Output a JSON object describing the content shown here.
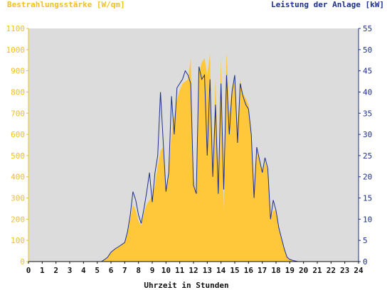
{
  "chart_data": {
    "type": "area",
    "title_left": "Bestrahlungsstärke [W/qm]",
    "title_right": "Leistung der Anlage [kW]",
    "xlabel": "Uhrzeit in Stunden",
    "x_ticks": [
      "0",
      "1",
      "2",
      "3",
      "4",
      "5",
      "6",
      "7",
      "8",
      "9",
      "10",
      "11",
      "12",
      "13",
      "14",
      "15",
      "16",
      "17",
      "18",
      "19",
      "20",
      "21",
      "22",
      "23",
      "24"
    ],
    "y_left_ticks": [
      "0",
      "100",
      "200",
      "300",
      "400",
      "500",
      "600",
      "700",
      "800",
      "900",
      "1000",
      "1100"
    ],
    "y_right_ticks": [
      "0",
      "5",
      "10",
      "15",
      "20",
      "25",
      "30",
      "35",
      "40",
      "45",
      "50",
      "55"
    ],
    "xlim": [
      0,
      24
    ],
    "ylim_left": [
      0,
      1100
    ],
    "ylim_right": [
      0,
      55
    ],
    "grid": false,
    "colors": {
      "irradiance_fill": "#ffc83a",
      "power_line": "#1c2f8c",
      "plot_background": "#dcdcdc",
      "left_axis": "#f0c020",
      "right_axis": "#1c2f8c"
    },
    "series": [
      {
        "name": "Bestrahlungsstärke [W/qm]",
        "axis": "left",
        "style": "area",
        "points": [
          [
            0,
            0
          ],
          [
            5.3,
            0
          ],
          [
            5.5,
            8
          ],
          [
            5.75,
            18
          ],
          [
            6.0,
            45
          ],
          [
            6.3,
            60
          ],
          [
            6.6,
            72
          ],
          [
            7.0,
            90
          ],
          [
            7.2,
            130
          ],
          [
            7.4,
            200
          ],
          [
            7.6,
            270
          ],
          [
            7.8,
            240
          ],
          [
            8.0,
            190
          ],
          [
            8.2,
            170
          ],
          [
            8.4,
            230
          ],
          [
            8.6,
            270
          ],
          [
            8.8,
            290
          ],
          [
            9.0,
            310
          ],
          [
            9.2,
            360
          ],
          [
            9.4,
            450
          ],
          [
            9.6,
            520
          ],
          [
            9.8,
            540
          ],
          [
            10.0,
            330
          ],
          [
            10.2,
            420
          ],
          [
            10.4,
            600
          ],
          [
            10.6,
            690
          ],
          [
            10.8,
            760
          ],
          [
            11.0,
            810
          ],
          [
            11.2,
            840
          ],
          [
            11.4,
            850
          ],
          [
            11.6,
            860
          ],
          [
            11.8,
            960
          ],
          [
            12.0,
            400
          ],
          [
            12.2,
            310
          ],
          [
            12.4,
            890
          ],
          [
            12.6,
            940
          ],
          [
            12.8,
            960
          ],
          [
            13.0,
            880
          ],
          [
            13.2,
            980
          ],
          [
            13.4,
            430
          ],
          [
            13.6,
            870
          ],
          [
            13.8,
            400
          ],
          [
            14.0,
            960
          ],
          [
            14.2,
            240
          ],
          [
            14.4,
            990
          ],
          [
            14.6,
            700
          ],
          [
            14.8,
            820
          ],
          [
            15.0,
            860
          ],
          [
            15.2,
            640
          ],
          [
            15.4,
            860
          ],
          [
            15.6,
            790
          ],
          [
            15.8,
            770
          ],
          [
            16.0,
            740
          ],
          [
            16.2,
            580
          ],
          [
            16.4,
            360
          ],
          [
            16.6,
            530
          ],
          [
            16.8,
            470
          ],
          [
            17.0,
            420
          ],
          [
            17.2,
            470
          ],
          [
            17.4,
            430
          ],
          [
            17.6,
            200
          ],
          [
            17.8,
            240
          ],
          [
            18.0,
            240
          ],
          [
            18.2,
            150
          ],
          [
            18.4,
            105
          ],
          [
            18.6,
            60
          ],
          [
            18.8,
            25
          ],
          [
            19.0,
            12
          ],
          [
            19.3,
            4
          ],
          [
            19.6,
            0
          ],
          [
            24,
            0
          ]
        ]
      },
      {
        "name": "Leistung der Anlage [kW]",
        "axis": "right",
        "style": "line",
        "points": [
          [
            0,
            0
          ],
          [
            5.3,
            0
          ],
          [
            5.5,
            0.4
          ],
          [
            5.75,
            1.0
          ],
          [
            6.0,
            2.2
          ],
          [
            6.3,
            3.0
          ],
          [
            6.6,
            3.6
          ],
          [
            7.0,
            4.5
          ],
          [
            7.2,
            7.0
          ],
          [
            7.4,
            11.0
          ],
          [
            7.6,
            16.5
          ],
          [
            7.8,
            14.5
          ],
          [
            8.0,
            11.0
          ],
          [
            8.2,
            9.0
          ],
          [
            8.4,
            12.5
          ],
          [
            8.6,
            16.5
          ],
          [
            8.8,
            21.0
          ],
          [
            9.0,
            14.0
          ],
          [
            9.2,
            21.0
          ],
          [
            9.4,
            25.0
          ],
          [
            9.6,
            40.0
          ],
          [
            9.8,
            28.0
          ],
          [
            10.0,
            16.5
          ],
          [
            10.2,
            21.0
          ],
          [
            10.4,
            39.0
          ],
          [
            10.6,
            30.0
          ],
          [
            10.8,
            41.0
          ],
          [
            11.0,
            42.0
          ],
          [
            11.2,
            43.0
          ],
          [
            11.4,
            45.0
          ],
          [
            11.6,
            44.0
          ],
          [
            11.8,
            42.0
          ],
          [
            12.0,
            18.0
          ],
          [
            12.2,
            16.0
          ],
          [
            12.4,
            46.0
          ],
          [
            12.6,
            43.0
          ],
          [
            12.8,
            44.0
          ],
          [
            13.0,
            25.0
          ],
          [
            13.2,
            43.0
          ],
          [
            13.4,
            20.0
          ],
          [
            13.6,
            37.0
          ],
          [
            13.8,
            16.0
          ],
          [
            14.0,
            42.0
          ],
          [
            14.2,
            17.0
          ],
          [
            14.4,
            44.0
          ],
          [
            14.6,
            30.0
          ],
          [
            14.8,
            40.0
          ],
          [
            15.0,
            44.0
          ],
          [
            15.2,
            28.0
          ],
          [
            15.4,
            42.0
          ],
          [
            15.6,
            39.0
          ],
          [
            15.8,
            37.0
          ],
          [
            16.0,
            36.0
          ],
          [
            16.2,
            30.0
          ],
          [
            16.4,
            15.0
          ],
          [
            16.6,
            27.0
          ],
          [
            16.8,
            24.0
          ],
          [
            17.0,
            21.0
          ],
          [
            17.2,
            24.5
          ],
          [
            17.4,
            22.0
          ],
          [
            17.6,
            10.0
          ],
          [
            17.8,
            14.5
          ],
          [
            18.0,
            12.0
          ],
          [
            18.2,
            8.0
          ],
          [
            18.4,
            5.5
          ],
          [
            18.6,
            3.0
          ],
          [
            18.8,
            1.0
          ],
          [
            19.0,
            0.5
          ],
          [
            19.3,
            0.2
          ],
          [
            19.6,
            0
          ],
          [
            24,
            0
          ]
        ]
      }
    ]
  }
}
